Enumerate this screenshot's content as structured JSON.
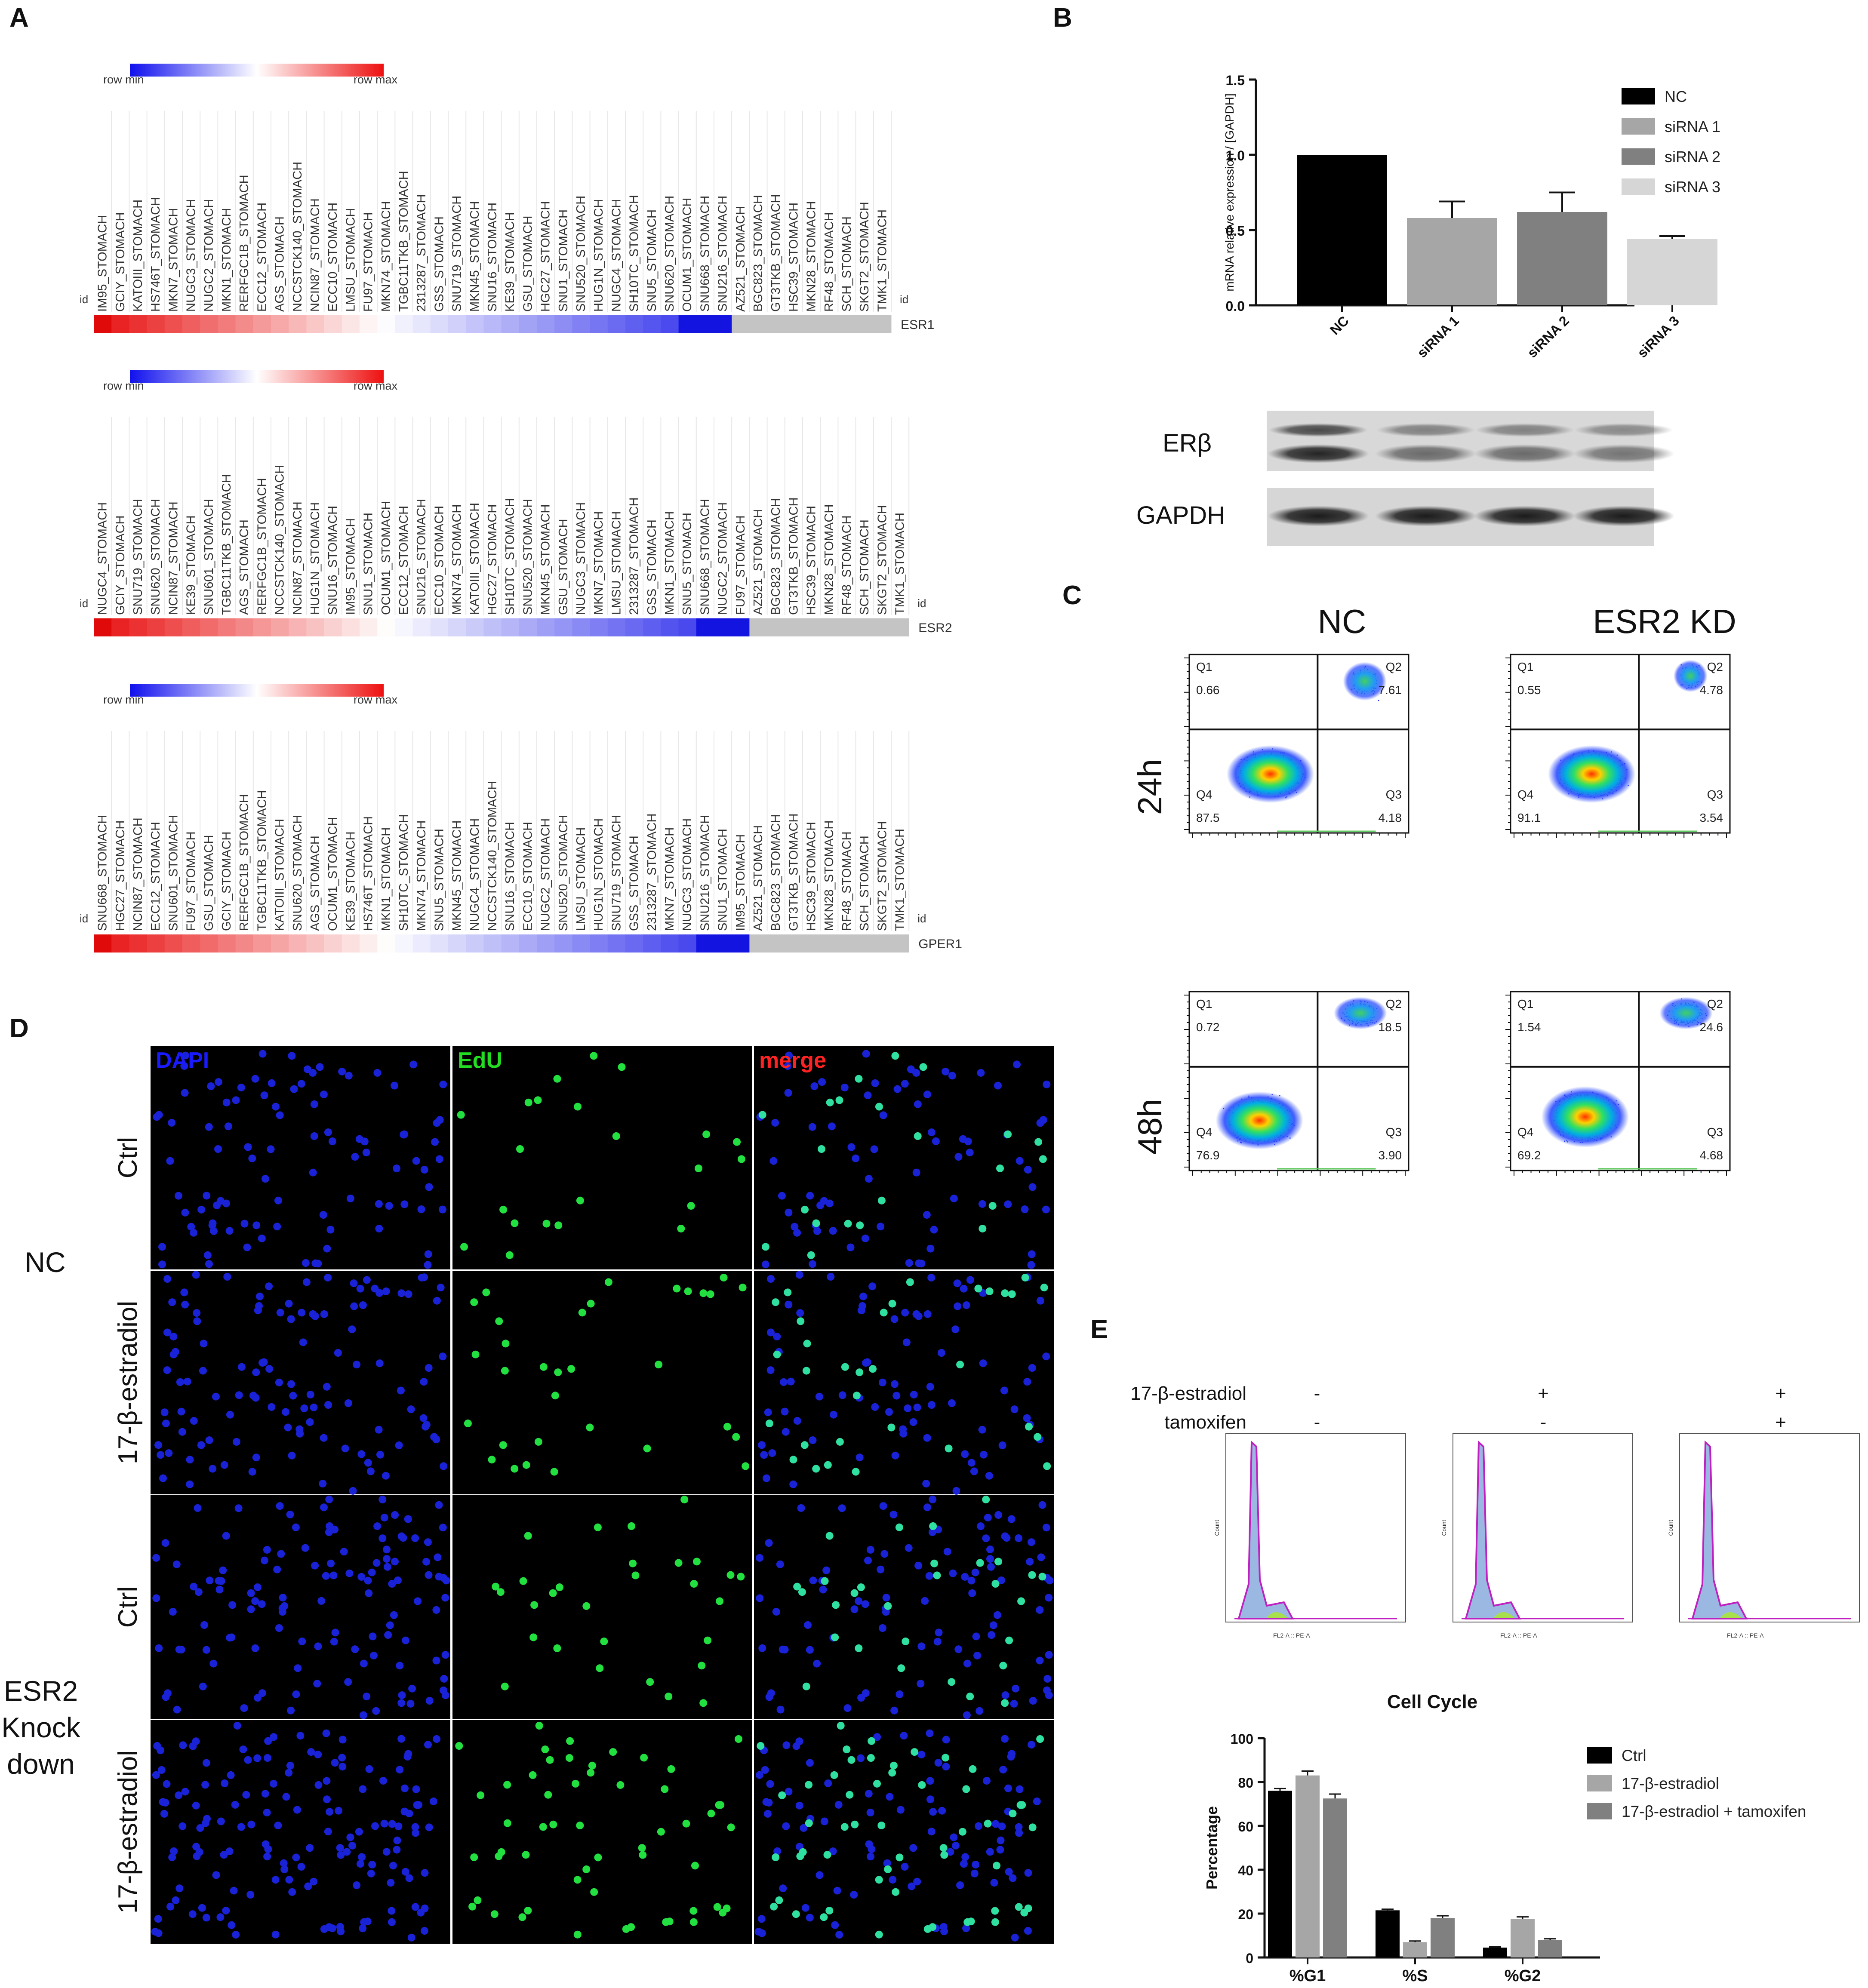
{
  "panels": {
    "A": {
      "letter": "A",
      "legend_min": "row min",
      "legend_max": "row max",
      "id_label": "id",
      "heatmaps": [
        {
          "gene": "ESR1",
          "lines": [
            "IM95_STOMACH",
            "GCIY_STOMACH",
            "KATOIII_STOMACH",
            "HS746T_STOMACH",
            "MKN7_STOMACH",
            "NUGC3_STOMACH",
            "NUGC2_STOMACH",
            "MKN1_STOMACH",
            "RERFGC1B_STOMACH",
            "ECC12_STOMACH",
            "AGS_STOMACH",
            "NCCSTCK140_STOMACH",
            "NCIN87_STOMACH",
            "ECC10_STOMACH",
            "LMSU_STOMACH",
            "FU97_STOMACH",
            "MKN74_STOMACH",
            "TGBC11TKB_STOMACH",
            "2313287_STOMACH",
            "GSS_STOMACH",
            "SNU719_STOMACH",
            "MKN45_STOMACH",
            "SNU16_STOMACH",
            "KE39_STOMACH",
            "GSU_STOMACH",
            "HGC27_STOMACH",
            "SNU1_STOMACH",
            "SNU520_STOMACH",
            "HUG1N_STOMACH",
            "NUGC4_STOMACH",
            "SH10TC_STOMACH",
            "SNU5_STOMACH",
            "SNU620_STOMACH",
            "OCUM1_STOMACH",
            "SNU668_STOMACH",
            "SNU216_STOMACH",
            "AZ521_STOMACH",
            "BGC823_STOMACH",
            "GT3TKB_STOMACH",
            "HSC39_STOMACH",
            "MKN28_STOMACH",
            "RF48_STOMACH",
            "SCH_STOMACH",
            "SKGT2_STOMACH",
            "TMK1_STOMACH"
          ],
          "n_colored": 36
        },
        {
          "gene": "ESR2",
          "lines": [
            "NUGC4_STOMACH",
            "GCIY_STOMACH",
            "SNU719_STOMACH",
            "SNU620_STOMACH",
            "NCIN87_STOMACH",
            "KE39_STOMACH",
            "SNU601_STOMACH",
            "TGBC11TKB_STOMACH",
            "AGS_STOMACH",
            "RERFGC1B_STOMACH",
            "NCCSTCK140_STOMACH",
            "NCIN87_STOMACH",
            "HUG1N_STOMACH",
            "SNU16_STOMACH",
            "IM95_STOMACH",
            "SNU1_STOMACH",
            "OCUM1_STOMACH",
            "ECC12_STOMACH",
            "SNU216_STOMACH",
            "ECC10_STOMACH",
            "MKN74_STOMACH",
            "KATOIII_STOMACH",
            "HGC27_STOMACH",
            "SH10TC_STOMACH",
            "SNU520_STOMACH",
            "MKN45_STOMACH",
            "GSU_STOMACH",
            "NUGC3_STOMACH",
            "MKN7_STOMACH",
            "LMSU_STOMACH",
            "2313287_STOMACH",
            "GSS_STOMACH",
            "MKN1_STOMACH",
            "SNU5_STOMACH",
            "SNU668_STOMACH",
            "NUGC2_STOMACH",
            "FU97_STOMACH",
            "AZ521_STOMACH",
            "BGC823_STOMACH",
            "GT3TKB_STOMACH",
            "HSC39_STOMACH",
            "MKN28_STOMACH",
            "RF48_STOMACH",
            "SCH_STOMACH",
            "SKGT2_STOMACH",
            "TMK1_STOMACH"
          ],
          "n_colored": 37
        },
        {
          "gene": "GPER1",
          "lines": [
            "SNU668_STOMACH",
            "HGC27_STOMACH",
            "NCIN87_STOMACH",
            "ECC12_STOMACH",
            "SNU601_STOMACH",
            "FU97_STOMACH",
            "GSU_STOMACH",
            "GCIY_STOMACH",
            "RERFGC1B_STOMACH",
            "TGBC11TKB_STOMACH",
            "KATOIII_STOMACH",
            "SNU620_STOMACH",
            "AGS_STOMACH",
            "OCUM1_STOMACH",
            "KE39_STOMACH",
            "HS746T_STOMACH",
            "MKN1_STOMACH",
            "SH10TC_STOMACH",
            "MKN74_STOMACH",
            "SNU5_STOMACH",
            "MKN45_STOMACH",
            "NUGC4_STOMACH",
            "NCCSTCK140_STOMACH",
            "SNU16_STOMACH",
            "ECC10_STOMACH",
            "NUGC2_STOMACH",
            "SNU520_STOMACH",
            "LMSU_STOMACH",
            "HUG1N_STOMACH",
            "SNU719_STOMACH",
            "GSS_STOMACH",
            "2313287_STOMACH",
            "MKN7_STOMACH",
            "NUGC3_STOMACH",
            "SNU216_STOMACH",
            "SNU1_STOMACH",
            "IM95_STOMACH",
            "AZ521_STOMACH",
            "BGC823_STOMACH",
            "GT3TKB_STOMACH",
            "HSC39_STOMACH",
            "MKN28_STOMACH",
            "RF48_STOMACH",
            "SCH_STOMACH",
            "SKGT2_STOMACH",
            "TMK1_STOMACH"
          ],
          "n_colored": 37
        }
      ]
    },
    "B": {
      "letter": "B",
      "western": {
        "rows": [
          "ERβ",
          "GAPDH"
        ]
      }
    },
    "C": {
      "letter": "C",
      "col_titles": [
        "NC",
        "ESR2 KD"
      ],
      "row_titles": [
        "24h",
        "48h"
      ],
      "plots": [
        {
          "q1": "0.66",
          "q2": "7.61",
          "q3": "4.18",
          "q4": "87.5"
        },
        {
          "q1": "0.55",
          "q2": "4.78",
          "q3": "3.54",
          "q4": "91.1"
        },
        {
          "q1": "0.72",
          "q2": "18.5",
          "q3": "3.90",
          "q4": "76.9"
        },
        {
          "q1": "1.54",
          "q2": "24.6",
          "q3": "4.68",
          "q4": "69.2"
        }
      ],
      "quad_names": [
        "Q1",
        "Q2",
        "Q3",
        "Q4"
      ]
    },
    "D": {
      "letter": "D",
      "channels": [
        "DAPI",
        "EdU",
        "merge"
      ],
      "channel_colors": [
        "#1a1aff",
        "#22dd22",
        "#ff2222"
      ],
      "row_labels": [
        "Ctrl",
        "17-β-estradiol",
        "Ctrl",
        "17-β-estradiol"
      ],
      "group_nc": "NC",
      "group_kd": [
        "ESR2",
        "Knock",
        "down"
      ]
    },
    "E": {
      "letter": "E",
      "treat_labels": [
        "17-β-estradiol",
        "tamoxifen"
      ],
      "treat_signs": [
        [
          "-",
          "-"
        ],
        [
          "+",
          "-"
        ],
        [
          "+",
          "+"
        ]
      ],
      "hist_ylabel": "Count",
      "hist_xlabel": "FL2-A :: PE-A"
    }
  },
  "chart_data": [
    {
      "type": "bar",
      "ylabel": "mRNA relative expression / [GAPDH]",
      "categories": [
        "NC",
        "siRNA 1",
        "siRNA 2",
        "siRNA 3"
      ],
      "values": [
        1.0,
        0.58,
        0.62,
        0.44
      ],
      "errors": [
        0,
        0.11,
        0.13,
        0.02
      ],
      "colors": [
        "#000000",
        "#a6a6a6",
        "#808080",
        "#d6d6d6"
      ],
      "legend": [
        "NC",
        "siRNA 1",
        "siRNA 2",
        "siRNA 3"
      ],
      "yticks": [
        "0.0",
        "0.5",
        "1.0",
        "1.5"
      ],
      "ylim": [
        0,
        1.5
      ]
    },
    {
      "type": "bar",
      "title": "Cell Cycle",
      "ylabel": "Percentage",
      "categories": [
        "%G1",
        "%S",
        "%G2"
      ],
      "series": [
        {
          "name": "Ctrl",
          "values": [
            76,
            21.5,
            4.5
          ],
          "errors": [
            1,
            0.5,
            0.3
          ],
          "color": "#000000"
        },
        {
          "name": "17-β-estradiol",
          "values": [
            83,
            7,
            17.5
          ],
          "errors": [
            2,
            0.5,
            1
          ],
          "color": "#a6a6a6"
        },
        {
          "name": "17-β-estradiol + tamoxifen",
          "values": [
            72.5,
            18,
            8
          ],
          "errors": [
            2,
            1,
            0.5
          ],
          "color": "#808080"
        }
      ],
      "yticks": [
        "0",
        "20",
        "40",
        "60",
        "80",
        "100"
      ],
      "ylim": [
        0,
        100
      ]
    }
  ]
}
